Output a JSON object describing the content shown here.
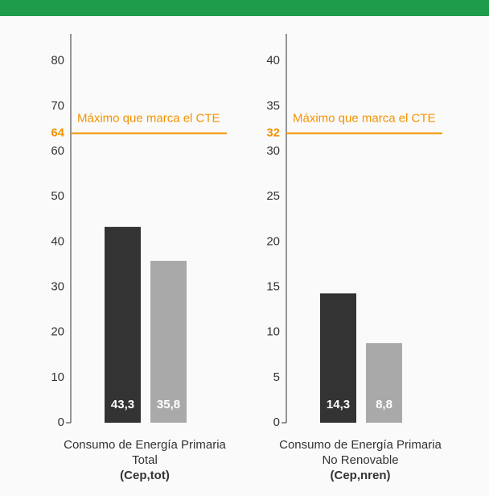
{
  "chart_data": [
    {
      "type": "bar",
      "values": [
        43.3,
        35.8
      ],
      "value_labels": [
        "43,3",
        "35,8"
      ],
      "colors": [
        "#333333",
        "#a9a9a9"
      ],
      "ylim": [
        0,
        86
      ],
      "yticks": [
        0,
        10,
        20,
        30,
        40,
        50,
        60,
        70,
        80
      ],
      "reference_line": {
        "value": 64,
        "label": "Máximo que marca el CTE",
        "color": "#f39200"
      },
      "xlabel": [
        "Consumo de Energía Primaria",
        "Total",
        "(Cep,tot)"
      ]
    },
    {
      "type": "bar",
      "values": [
        14.3,
        8.8
      ],
      "value_labels": [
        "14,3",
        "8,8"
      ],
      "colors": [
        "#333333",
        "#a9a9a9"
      ],
      "ylim": [
        0,
        43
      ],
      "yticks": [
        0,
        5,
        10,
        15,
        20,
        25,
        30,
        35,
        40
      ],
      "reference_line": {
        "value": 32,
        "label": "Máximo que marca el CTE",
        "color": "#f39200"
      },
      "xlabel": [
        "Consumo de Energía Primaria",
        "No Renovable",
        "(Cep,nren)"
      ]
    }
  ]
}
